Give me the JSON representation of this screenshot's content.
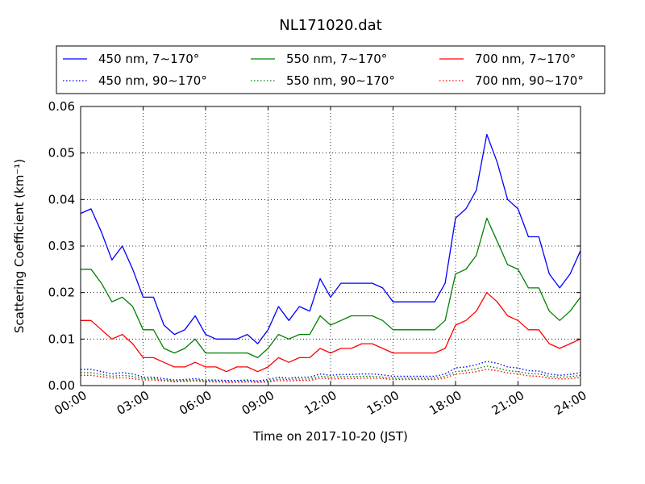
{
  "chart_data": {
    "type": "line",
    "title": "NL171020.dat",
    "xlabel": "Time on 2017-10-20 (JST)",
    "ylabel": "Scattering Coefficient (km⁻¹)",
    "xlim": [
      "2017-10-20 00:00",
      "2017-10-21 00:00"
    ],
    "ylim": [
      0,
      0.06
    ],
    "x_ticks": [
      "00:00",
      "03:00",
      "06:00",
      "09:00",
      "12:00",
      "15:00",
      "18:00",
      "21:00",
      "24:00"
    ],
    "y_ticks": [
      "0.00",
      "0.01",
      "0.02",
      "0.03",
      "0.04",
      "0.05",
      "0.06"
    ],
    "grid": true,
    "legend_position": "top (outside plot, 3 columns)",
    "x": [
      "00:00",
      "00:30",
      "01:00",
      "01:30",
      "02:00",
      "02:30",
      "03:00",
      "03:30",
      "04:00",
      "04:30",
      "05:00",
      "05:30",
      "06:00",
      "06:30",
      "07:00",
      "07:30",
      "08:00",
      "08:30",
      "09:00",
      "09:30",
      "10:00",
      "10:30",
      "11:00",
      "11:30",
      "12:00",
      "12:30",
      "13:00",
      "13:30",
      "14:00",
      "14:30",
      "15:00",
      "15:30",
      "16:00",
      "16:30",
      "17:00",
      "17:30",
      "18:00",
      "18:30",
      "19:00",
      "19:30",
      "20:00",
      "20:30",
      "21:00",
      "21:30",
      "22:00",
      "22:30",
      "23:00",
      "23:30",
      "24:00"
    ],
    "series": [
      {
        "name": "450 nm, 7∼170°",
        "color": "#0000ff",
        "style": "solid",
        "values": [
          0.037,
          0.038,
          0.033,
          0.027,
          0.03,
          0.025,
          0.019,
          0.019,
          0.013,
          0.011,
          0.012,
          0.015,
          0.011,
          0.01,
          0.01,
          0.01,
          0.011,
          0.009,
          0.012,
          0.017,
          0.014,
          0.017,
          0.016,
          0.023,
          0.019,
          0.022,
          0.022,
          0.022,
          0.022,
          0.021,
          0.018,
          0.018,
          0.018,
          0.018,
          0.018,
          0.022,
          0.036,
          0.038,
          0.042,
          0.054,
          0.048,
          0.04,
          0.038,
          0.032,
          0.032,
          0.024,
          0.021,
          0.024,
          0.029
        ]
      },
      {
        "name": "550 nm, 7∼170°",
        "color": "#008000",
        "style": "solid",
        "values": [
          0.025,
          0.025,
          0.022,
          0.018,
          0.019,
          0.017,
          0.012,
          0.012,
          0.008,
          0.007,
          0.008,
          0.01,
          0.007,
          0.007,
          0.007,
          0.007,
          0.007,
          0.006,
          0.008,
          0.011,
          0.01,
          0.011,
          0.011,
          0.015,
          0.013,
          0.014,
          0.015,
          0.015,
          0.015,
          0.014,
          0.012,
          0.012,
          0.012,
          0.012,
          0.012,
          0.014,
          0.024,
          0.025,
          0.028,
          0.036,
          0.031,
          0.026,
          0.025,
          0.021,
          0.021,
          0.016,
          0.014,
          0.016,
          0.019
        ]
      },
      {
        "name": "700 nm, 7∼170°",
        "color": "#ff0000",
        "style": "solid",
        "values": [
          0.014,
          0.014,
          0.012,
          0.01,
          0.011,
          0.009,
          0.006,
          0.006,
          0.005,
          0.004,
          0.004,
          0.005,
          0.004,
          0.004,
          0.003,
          0.004,
          0.004,
          0.003,
          0.004,
          0.006,
          0.005,
          0.006,
          0.006,
          0.008,
          0.007,
          0.008,
          0.008,
          0.009,
          0.009,
          0.008,
          0.007,
          0.007,
          0.007,
          0.007,
          0.007,
          0.008,
          0.013,
          0.014,
          0.016,
          0.02,
          0.018,
          0.015,
          0.014,
          0.012,
          0.012,
          0.009,
          0.008,
          0.009,
          0.01
        ]
      },
      {
        "name": "450 nm, 90∼170°",
        "color": "#0000ff",
        "style": "dotted",
        "values": [
          0.0035,
          0.0035,
          0.003,
          0.0025,
          0.0028,
          0.0025,
          0.0018,
          0.0018,
          0.0015,
          0.0012,
          0.0013,
          0.0015,
          0.0012,
          0.0012,
          0.0011,
          0.0011,
          0.0012,
          0.001,
          0.0013,
          0.0018,
          0.0016,
          0.0018,
          0.0018,
          0.0025,
          0.0022,
          0.0024,
          0.0024,
          0.0025,
          0.0025,
          0.0023,
          0.002,
          0.002,
          0.002,
          0.002,
          0.002,
          0.0025,
          0.0038,
          0.004,
          0.0045,
          0.0052,
          0.0048,
          0.004,
          0.0038,
          0.0032,
          0.0031,
          0.0025,
          0.0022,
          0.0024,
          0.0028
        ]
      },
      {
        "name": "550 nm, 90∼170°",
        "color": "#008000",
        "style": "dotted",
        "values": [
          0.0028,
          0.0028,
          0.0024,
          0.002,
          0.0022,
          0.002,
          0.0015,
          0.0015,
          0.0012,
          0.001,
          0.0011,
          0.0012,
          0.001,
          0.001,
          0.0009,
          0.0009,
          0.001,
          0.0008,
          0.001,
          0.0014,
          0.0013,
          0.0014,
          0.0014,
          0.002,
          0.0018,
          0.0019,
          0.0019,
          0.002,
          0.002,
          0.0018,
          0.0016,
          0.0016,
          0.0016,
          0.0016,
          0.0016,
          0.002,
          0.003,
          0.0032,
          0.0036,
          0.0042,
          0.0038,
          0.0032,
          0.003,
          0.0026,
          0.0025,
          0.002,
          0.0018,
          0.0019,
          0.0022
        ]
      },
      {
        "name": "700 nm, 90∼170°",
        "color": "#ff0000",
        "style": "dotted",
        "values": [
          0.0022,
          0.0022,
          0.0019,
          0.0016,
          0.0017,
          0.0015,
          0.0012,
          0.0012,
          0.001,
          0.0008,
          0.0009,
          0.001,
          0.0008,
          0.0008,
          0.0007,
          0.0007,
          0.0008,
          0.0007,
          0.0008,
          0.0011,
          0.001,
          0.0011,
          0.0011,
          0.0016,
          0.0014,
          0.0015,
          0.0015,
          0.0016,
          0.0016,
          0.0015,
          0.0013,
          0.0013,
          0.0013,
          0.0013,
          0.0013,
          0.0016,
          0.0025,
          0.0027,
          0.003,
          0.0035,
          0.0032,
          0.0027,
          0.0025,
          0.0021,
          0.002,
          0.0016,
          0.0014,
          0.0015,
          0.0018
        ]
      }
    ],
    "legend_order": [
      0,
      1,
      2,
      3,
      4,
      5
    ]
  }
}
